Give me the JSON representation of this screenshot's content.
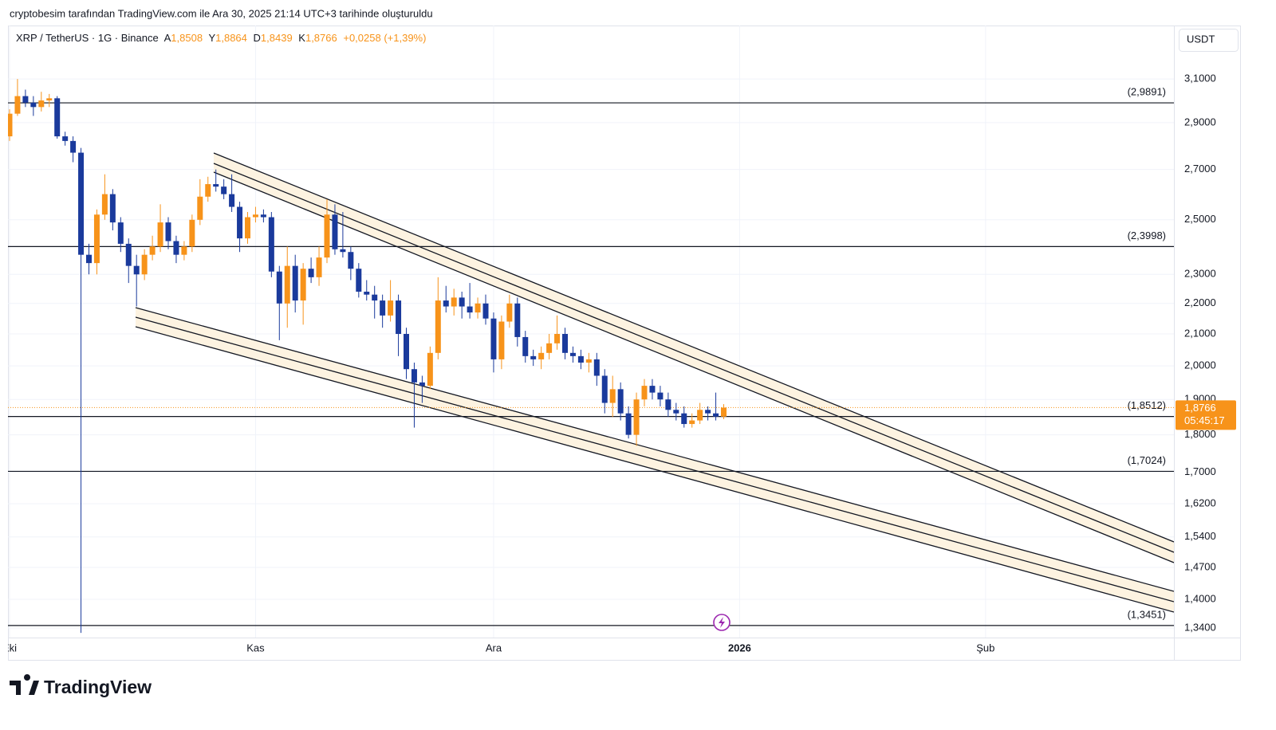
{
  "header": {
    "text": "cryptobesim tarafından TradingView.com ile Ara 30, 2025 21:14 UTC+3 tarihinde oluşturuldu"
  },
  "chart_data": {
    "type": "candlestick",
    "symbol": "XRP / TetherUS · 1G · Binance",
    "legend": [
      {
        "key": "A",
        "value": "1,8508"
      },
      {
        "key": "Y",
        "value": "1,8864"
      },
      {
        "key": "D",
        "value": "1,8439"
      },
      {
        "key": "K",
        "value": "1,8766"
      }
    ],
    "change": "+0,0258 (+1,39%)",
    "currency": "USDT",
    "categories": [
      "Eki",
      null,
      null,
      null,
      null,
      null,
      null,
      null,
      null,
      null,
      null,
      null,
      null,
      null,
      null,
      null,
      null,
      null,
      null,
      null,
      null,
      null,
      null,
      null,
      null,
      null,
      null,
      null,
      null,
      null,
      null,
      "Kas",
      null,
      null,
      null,
      null,
      null,
      null,
      null,
      null,
      null,
      null,
      null,
      null,
      null,
      null,
      null,
      null,
      null,
      null,
      null,
      null,
      null,
      null,
      null,
      null,
      null,
      null,
      null,
      null,
      null,
      "Ara",
      null,
      null,
      null,
      null,
      null,
      null,
      null,
      null,
      null,
      null,
      null,
      null,
      null,
      null,
      null,
      null,
      null,
      null,
      null,
      null,
      null,
      null,
      null,
      null,
      null,
      null,
      null,
      null,
      null,
      null,
      "2026",
      null,
      null,
      null,
      null,
      null,
      null,
      null,
      null,
      null,
      null,
      null,
      null,
      null,
      null,
      null,
      null,
      null,
      null,
      null,
      null,
      null,
      null,
      null,
      null,
      null,
      null,
      null,
      null,
      null,
      null,
      "Şub",
      null,
      null,
      null,
      null,
      null,
      null,
      null,
      null,
      null,
      null,
      null,
      null,
      null,
      null,
      null,
      null,
      null,
      null,
      null,
      null,
      null,
      null,
      null
    ],
    "open": [
      2.84,
      2.94,
      3.02,
      2.99,
      2.97,
      3.0,
      3.01,
      2.84,
      2.82,
      2.77,
      2.37,
      2.34,
      2.52,
      2.6,
      2.49,
      2.41,
      2.33,
      2.3,
      2.37,
      2.4,
      2.49,
      2.42,
      2.37,
      2.4,
      2.5,
      2.59,
      2.64,
      2.63,
      2.6,
      2.55,
      2.43,
      2.51,
      2.52,
      2.51,
      2.31,
      2.2,
      2.33,
      2.21,
      2.32,
      2.29,
      2.36,
      2.52,
      2.39,
      2.38,
      2.32,
      2.24,
      2.23,
      2.21,
      2.16,
      2.21,
      2.1,
      1.99,
      1.95,
      1.94,
      2.04,
      2.21,
      2.19,
      2.22,
      2.19,
      2.17,
      2.2,
      2.15,
      2.02,
      2.14,
      2.2,
      2.09,
      2.03,
      2.02,
      2.04,
      2.07,
      2.1,
      2.04,
      2.03,
      2.01,
      2.02,
      1.97,
      1.89,
      1.93,
      1.86,
      1.8,
      1.9,
      1.94,
      1.92,
      1.9,
      1.87,
      1.86,
      1.83,
      1.84,
      1.87,
      1.86,
      1.8508,
      null,
      null,
      null,
      null,
      null,
      null,
      null,
      null,
      null,
      null,
      null,
      null,
      null,
      null,
      null,
      null,
      null,
      null,
      null,
      null,
      null,
      null,
      null,
      null,
      null,
      null,
      null,
      null,
      null,
      null,
      null,
      null,
      null,
      null,
      null,
      null,
      null,
      null,
      null,
      null,
      null,
      null,
      null,
      null,
      null,
      null,
      null,
      null,
      null,
      null,
      null,
      null,
      null,
      null,
      null,
      null
    ],
    "high": [
      2.96,
      3.1,
      3.05,
      3.02,
      3.04,
      3.03,
      3.02,
      2.86,
      2.84,
      2.79,
      2.41,
      2.54,
      2.68,
      2.62,
      2.51,
      2.43,
      2.37,
      2.39,
      2.44,
      2.56,
      2.51,
      2.44,
      2.42,
      2.52,
      2.66,
      2.67,
      2.7,
      2.66,
      2.68,
      2.57,
      2.53,
      2.55,
      2.54,
      2.53,
      2.33,
      2.4,
      2.37,
      2.34,
      2.36,
      2.4,
      2.58,
      2.56,
      2.53,
      2.4,
      2.34,
      2.28,
      2.26,
      2.23,
      2.28,
      2.23,
      2.12,
      2.01,
      1.97,
      2.06,
      2.29,
      2.26,
      2.25,
      2.24,
      2.27,
      2.22,
      2.23,
      2.17,
      2.16,
      2.23,
      2.22,
      2.11,
      2.05,
      2.06,
      2.1,
      2.16,
      2.12,
      2.06,
      2.05,
      2.04,
      2.04,
      1.99,
      1.97,
      1.95,
      1.88,
      1.92,
      1.96,
      1.96,
      1.94,
      1.92,
      1.89,
      1.88,
      1.86,
      1.89,
      1.88,
      1.92,
      1.8864,
      null,
      null,
      null,
      null,
      null,
      null,
      null,
      null,
      null,
      null,
      null,
      null,
      null,
      null,
      null,
      null,
      null,
      null,
      null,
      null,
      null,
      null,
      null,
      null,
      null,
      null,
      null,
      null,
      null,
      null,
      null,
      null,
      null,
      null,
      null,
      null,
      null,
      null,
      null,
      null,
      null,
      null,
      null,
      null,
      null,
      null,
      null,
      null,
      null,
      null,
      null,
      null,
      null,
      null,
      null,
      null
    ],
    "low": [
      2.82,
      2.93,
      2.97,
      2.93,
      2.95,
      2.97,
      2.83,
      2.8,
      2.73,
      1.33,
      2.3,
      2.3,
      2.5,
      2.46,
      2.38,
      2.27,
      2.19,
      2.28,
      2.35,
      2.38,
      2.39,
      2.34,
      2.35,
      2.38,
      2.48,
      2.57,
      2.61,
      2.58,
      2.53,
      2.38,
      2.41,
      2.49,
      2.49,
      2.29,
      2.08,
      2.12,
      2.17,
      2.13,
      2.27,
      2.26,
      2.34,
      2.37,
      2.36,
      2.28,
      2.22,
      2.21,
      2.15,
      2.12,
      2.14,
      2.03,
      1.96,
      1.82,
      1.89,
      1.93,
      2.02,
      2.17,
      2.16,
      2.15,
      2.15,
      2.15,
      2.13,
      1.98,
      1.99,
      2.12,
      2.06,
      2.01,
      2.0,
      1.99,
      2.02,
      2.05,
      2.02,
      2.01,
      1.99,
      1.98,
      1.94,
      1.86,
      1.85,
      1.84,
      1.79,
      1.77,
      1.88,
      1.9,
      1.88,
      1.85,
      1.84,
      1.82,
      1.82,
      1.83,
      1.84,
      1.84,
      1.8439,
      null,
      null,
      null,
      null,
      null,
      null,
      null,
      null,
      null,
      null,
      null,
      null,
      null,
      null,
      null,
      null,
      null,
      null,
      null,
      null,
      null,
      null,
      null,
      null,
      null,
      null,
      null,
      null,
      null,
      null,
      null,
      null,
      null,
      null,
      null,
      null,
      null,
      null,
      null,
      null,
      null,
      null,
      null,
      null,
      null,
      null,
      null,
      null,
      null,
      null,
      null,
      null,
      null,
      null,
      null,
      null
    ],
    "close": [
      2.94,
      3.02,
      2.99,
      2.97,
      3.0,
      3.01,
      2.84,
      2.82,
      2.77,
      2.37,
      2.34,
      2.52,
      2.6,
      2.49,
      2.41,
      2.33,
      2.3,
      2.37,
      2.4,
      2.49,
      2.42,
      2.37,
      2.4,
      2.5,
      2.59,
      2.64,
      2.63,
      2.6,
      2.55,
      2.43,
      2.51,
      2.52,
      2.51,
      2.31,
      2.2,
      2.33,
      2.21,
      2.32,
      2.29,
      2.36,
      2.52,
      2.39,
      2.38,
      2.32,
      2.24,
      2.23,
      2.21,
      2.16,
      2.21,
      2.1,
      1.99,
      1.95,
      1.94,
      2.04,
      2.21,
      2.19,
      2.22,
      2.19,
      2.17,
      2.2,
      2.15,
      2.02,
      2.14,
      2.2,
      2.09,
      2.03,
      2.02,
      2.04,
      2.07,
      2.1,
      2.04,
      2.03,
      2.01,
      2.02,
      1.97,
      1.89,
      1.93,
      1.86,
      1.8,
      1.9,
      1.94,
      1.92,
      1.9,
      1.87,
      1.86,
      1.83,
      1.84,
      1.87,
      1.86,
      1.8508,
      1.8766,
      null,
      null,
      null,
      null,
      null,
      null,
      null,
      null,
      null,
      null,
      null,
      null,
      null,
      null,
      null,
      null,
      null,
      null,
      null,
      null,
      null,
      null,
      null,
      null,
      null,
      null,
      null,
      null,
      null,
      null,
      null,
      null,
      null,
      null,
      null,
      null,
      null,
      null,
      null,
      null,
      null,
      null,
      null,
      null,
      null,
      null,
      null,
      null,
      null,
      null,
      null,
      null,
      null,
      null,
      null,
      null
    ],
    "up_color": "#f7931a",
    "down_color": "#1a3a9c",
    "log_scale": true,
    "grid": true,
    "ylim": [
      1.3206,
      3.364
    ],
    "yticks": [
      {
        "value": 3.1,
        "label": "3,1000"
      },
      {
        "value": 2.9,
        "label": "2,9000"
      },
      {
        "value": 2.7,
        "label": "2,7000"
      },
      {
        "value": 2.5,
        "label": "2,5000"
      },
      {
        "value": 2.3,
        "label": "2,3000"
      },
      {
        "value": 2.2,
        "label": "2,2000"
      },
      {
        "value": 2.1,
        "label": "2,1000"
      },
      {
        "value": 2.0,
        "label": "2,0000"
      },
      {
        "value": 1.9,
        "label": "1,9000"
      },
      {
        "value": 1.8,
        "label": "1,8000"
      },
      {
        "value": 1.7,
        "label": "1,7000"
      },
      {
        "value": 1.62,
        "label": "1,6200"
      },
      {
        "value": 1.54,
        "label": "1,5400"
      },
      {
        "value": 1.47,
        "label": "1,4700"
      },
      {
        "value": 1.4,
        "label": "1,4000"
      },
      {
        "value": 1.34,
        "label": "1,3400"
      }
    ],
    "levels": [
      {
        "value": 2.9891,
        "label": "(2,9891)"
      },
      {
        "value": 2.3998,
        "label": "(2,3998)"
      },
      {
        "value": 1.8512,
        "label": "(1,8512)"
      },
      {
        "value": 1.7024,
        "label": "(1,7024)"
      },
      {
        "value": 1.3451,
        "label": "(1,3451)"
      }
    ],
    "last_price": {
      "value": 1.8766,
      "label": "1,8766"
    },
    "countdown": "05:45:17"
  },
  "footer": {
    "logo": "TradingView"
  }
}
